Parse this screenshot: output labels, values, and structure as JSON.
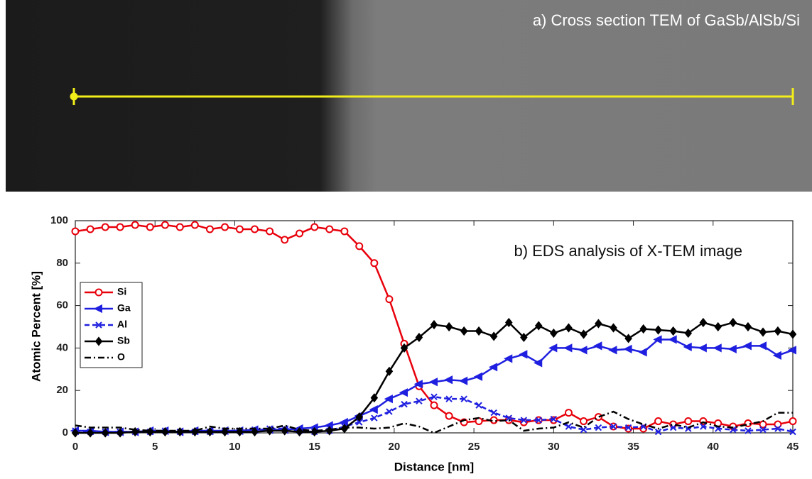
{
  "image": {
    "caption": "a) Cross section TEM of GaSb/AlSb/Si"
  },
  "chart_data": {
    "type": "line",
    "annotation": "b) EDS analysis of X-TEM image",
    "x_label": "Distance [nm]",
    "y_label": "Atomic Percent [%]",
    "xlim": [
      0,
      45
    ],
    "ylim": [
      0,
      100
    ],
    "xticks": [
      0,
      5,
      10,
      15,
      20,
      25,
      30,
      35,
      40,
      45
    ],
    "yticks": [
      0,
      20,
      40,
      60,
      80,
      100
    ],
    "legend": "left",
    "x": [
      0,
      0.94,
      1.88,
      2.81,
      3.75,
      4.69,
      5.63,
      6.56,
      7.5,
      8.44,
      9.38,
      10.31,
      11.25,
      12.19,
      13.13,
      14.06,
      15,
      15.94,
      16.88,
      17.81,
      18.75,
      19.69,
      20.63,
      21.56,
      22.5,
      23.44,
      24.38,
      25.31,
      26.25,
      27.19,
      28.13,
      29.06,
      30,
      30.94,
      31.88,
      32.81,
      33.75,
      34.69,
      35.63,
      36.56,
      37.5,
      38.44,
      39.38,
      40.31,
      41.25,
      42.19,
      43.13,
      44.06,
      45
    ],
    "series": [
      {
        "name": "Si",
        "color": "#e8000b",
        "marker": "circle",
        "dash": "solid",
        "values": [
          95,
          96,
          97,
          97,
          98,
          97,
          98,
          97,
          98,
          96,
          97,
          96,
          96,
          95,
          91,
          94,
          97,
          96,
          95,
          88,
          80,
          63,
          42,
          22,
          13,
          8,
          5,
          5.5,
          6,
          6,
          5,
          6,
          6,
          9.5,
          5.5,
          7.5,
          3,
          2,
          2,
          5.5,
          4,
          5.5,
          5.5,
          4.5,
          3,
          4.5,
          4,
          4,
          5.5
        ]
      },
      {
        "name": "Ga",
        "color": "#1f1fe0",
        "marker": "triangle-left",
        "dash": "solid",
        "values": [
          1,
          1,
          0.5,
          0.5,
          0.5,
          1,
          1,
          0.5,
          1,
          1,
          1,
          1,
          1.5,
          1.5,
          1.5,
          2,
          2.5,
          3.5,
          5,
          8,
          11,
          16,
          19,
          23,
          24,
          25,
          24.5,
          26.5,
          31,
          35,
          37,
          33,
          40,
          40,
          39,
          41,
          39,
          39.5,
          38,
          44,
          44,
          40.5,
          40,
          40,
          39.5,
          41,
          41,
          36.5,
          39
        ]
      },
      {
        "name": "Al",
        "color": "#1f1fe0",
        "marker": "x",
        "dash": "dashed",
        "values": [
          1,
          0.5,
          0.5,
          0.5,
          0.5,
          0.5,
          1,
          0.5,
          0.5,
          0.5,
          1,
          1,
          1.5,
          2,
          2,
          1,
          0.5,
          1,
          3,
          5,
          7,
          10,
          13.5,
          15,
          17,
          16,
          16,
          13,
          9.5,
          7,
          6,
          6,
          6.5,
          3,
          1.5,
          2.5,
          3,
          2.5,
          3,
          0.5,
          2.5,
          2,
          3,
          2,
          1.5,
          1,
          1.5,
          2,
          0.5
        ]
      },
      {
        "name": "Sb",
        "color": "#000000",
        "marker": "diamond",
        "dash": "solid",
        "values": [
          0,
          0,
          0,
          0,
          0.5,
          0.5,
          0.5,
          0.5,
          0.5,
          0.5,
          0.5,
          0.5,
          0.5,
          1,
          1,
          0.5,
          0.5,
          1,
          2,
          7.5,
          16.5,
          29,
          40,
          45,
          51,
          50,
          48,
          48,
          45.5,
          52,
          45,
          50.5,
          47,
          49.5,
          46.5,
          51.5,
          49.5,
          44.5,
          49,
          48.5,
          48,
          47,
          52,
          50,
          52,
          50,
          47.5,
          48,
          46.5
        ]
      },
      {
        "name": "O",
        "color": "#000000",
        "marker": "none",
        "dash": "dashdot",
        "values": [
          3.5,
          2.5,
          2.5,
          2.5,
          1.5,
          1,
          1,
          1,
          1,
          3,
          2,
          2,
          2,
          2,
          3.5,
          1.5,
          1,
          1.5,
          2.5,
          2.5,
          2,
          2.5,
          4.5,
          3,
          0,
          3,
          6,
          7,
          5.5,
          6,
          1,
          2,
          2.5,
          5,
          2.5,
          7.5,
          10,
          6.5,
          4,
          2,
          4,
          2.5,
          5,
          3,
          2.5,
          4,
          5.5,
          9.5,
          9.5
        ]
      }
    ]
  }
}
